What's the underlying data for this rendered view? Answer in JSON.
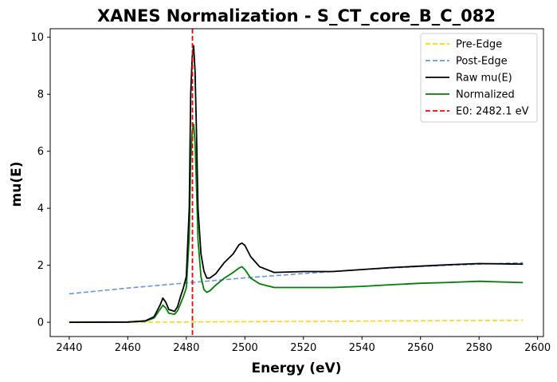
{
  "chart_data": {
    "type": "line",
    "title": "XANES Normalization - S_CT_core_B_C_082",
    "xlabel": "Energy (eV)",
    "ylabel": "mu(E)",
    "xlim": [
      2433.5,
      2602
    ],
    "ylim": [
      -0.5,
      10.3
    ],
    "x_ticks": [
      2440,
      2460,
      2480,
      2500,
      2520,
      2540,
      2560,
      2580,
      2600
    ],
    "y_ticks": [
      0,
      2,
      4,
      6,
      8,
      10
    ],
    "grid": false,
    "legend_position": "top-right",
    "series": [
      {
        "name": "Pre-Edge",
        "color": "#FFD700",
        "style": "dashed",
        "x": [
          2440,
          2595
        ],
        "y": [
          -0.01,
          0.07
        ]
      },
      {
        "name": "Post-Edge",
        "color": "#6495ED",
        "style": "dashed",
        "x": [
          2440,
          2460,
          2480,
          2500,
          2520,
          2540,
          2560,
          2580,
          2595
        ],
        "y": [
          1.0,
          1.2,
          1.38,
          1.56,
          1.71,
          1.85,
          1.96,
          2.04,
          2.09
        ]
      },
      {
        "name": "Raw mu(E)",
        "color": "#000000",
        "style": "solid",
        "x": [
          2440,
          2460,
          2466,
          2469,
          2471,
          2472,
          2473,
          2474,
          2476,
          2477,
          2478,
          2479,
          2480,
          2481,
          2481.5,
          2482,
          2482.5,
          2483,
          2483.5,
          2484,
          2485,
          2486,
          2487,
          2488,
          2490,
          2493,
          2496,
          2498,
          2499,
          2500,
          2502,
          2505,
          2510,
          2520,
          2530,
          2540,
          2550,
          2560,
          2570,
          2580,
          2595
        ],
        "y": [
          0.0,
          0.01,
          0.05,
          0.2,
          0.6,
          0.85,
          0.7,
          0.45,
          0.38,
          0.55,
          0.9,
          1.2,
          1.6,
          4.0,
          8.0,
          9.3,
          9.7,
          8.8,
          6.5,
          4.0,
          2.4,
          1.8,
          1.55,
          1.55,
          1.7,
          2.1,
          2.4,
          2.72,
          2.78,
          2.7,
          2.3,
          1.95,
          1.75,
          1.78,
          1.78,
          1.85,
          1.92,
          1.97,
          2.02,
          2.06,
          2.04
        ]
      },
      {
        "name": "Normalized",
        "color": "#008000",
        "style": "solid",
        "x": [
          2440,
          2460,
          2466,
          2469,
          2471,
          2472,
          2473,
          2474,
          2476,
          2477,
          2478,
          2479,
          2480,
          2481,
          2481.5,
          2482,
          2482.5,
          2483,
          2483.5,
          2484,
          2485,
          2486,
          2487,
          2488,
          2490,
          2493,
          2496,
          2498,
          2499,
          2500,
          2502,
          2505,
          2510,
          2520,
          2530,
          2540,
          2550,
          2560,
          2570,
          2580,
          2595
        ],
        "y": [
          0.0,
          0.01,
          0.04,
          0.15,
          0.45,
          0.6,
          0.5,
          0.32,
          0.28,
          0.4,
          0.65,
          0.9,
          1.2,
          3.0,
          5.7,
          6.7,
          6.95,
          6.3,
          4.6,
          2.9,
          1.6,
          1.15,
          1.05,
          1.1,
          1.3,
          1.55,
          1.75,
          1.9,
          1.95,
          1.85,
          1.55,
          1.35,
          1.22,
          1.22,
          1.22,
          1.26,
          1.32,
          1.37,
          1.4,
          1.44,
          1.39
        ]
      }
    ],
    "vlines": [
      {
        "name": "E0: 2482.1 eV",
        "x": 2482.1,
        "color": "#FF0000",
        "style": "dashed"
      }
    ]
  }
}
